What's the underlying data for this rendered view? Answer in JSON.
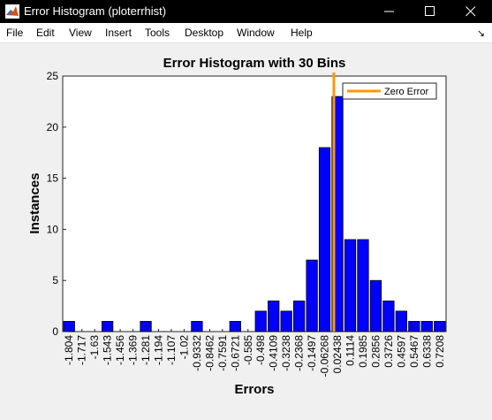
{
  "window": {
    "title": "Error Histogram (ploterrhist)",
    "buttons": [
      "minimize",
      "maximize",
      "close"
    ]
  },
  "menu": {
    "items": [
      "File",
      "Edit",
      "View",
      "Insert",
      "Tools",
      "Desktop",
      "Window",
      "Help"
    ]
  },
  "colors": {
    "bars": "#0000ff",
    "zero_line": "#ff9900",
    "titlebar": "#000000"
  },
  "chart_data": {
    "type": "bar",
    "title": "Error Histogram with 30 Bins",
    "xlabel": "Errors",
    "ylabel": "Instances",
    "ylim": [
      0,
      25
    ],
    "yticks": [
      0,
      5,
      10,
      15,
      20,
      25
    ],
    "categories": [
      "-1.804",
      "-1.717",
      "-1.63",
      "-1.543",
      "-1.456",
      "-1.369",
      "-1.281",
      "-1.194",
      "-1.107",
      "-1.02",
      "-0.9332",
      "-0.8462",
      "-0.7591",
      "-0.6721",
      "-0.585",
      "-0.498",
      "-0.4109",
      "-0.3238",
      "-0.2368",
      "-0.1497",
      "-0.06268",
      "0.02438",
      "0.1114",
      "0.1985",
      "0.2856",
      "0.3726",
      "0.4597",
      "0.5467",
      "0.6338",
      "0.7208"
    ],
    "values": [
      1,
      0,
      0,
      1,
      0,
      0,
      1,
      0,
      0,
      0,
      1,
      0,
      0,
      1,
      0,
      2,
      3,
      2,
      3,
      7,
      18,
      23,
      9,
      9,
      5,
      3,
      2,
      1,
      1,
      1
    ],
    "zero_error_x": 0,
    "legend": {
      "entries": [
        "Zero Error"
      ],
      "placement": "top-right"
    },
    "grid": false
  }
}
